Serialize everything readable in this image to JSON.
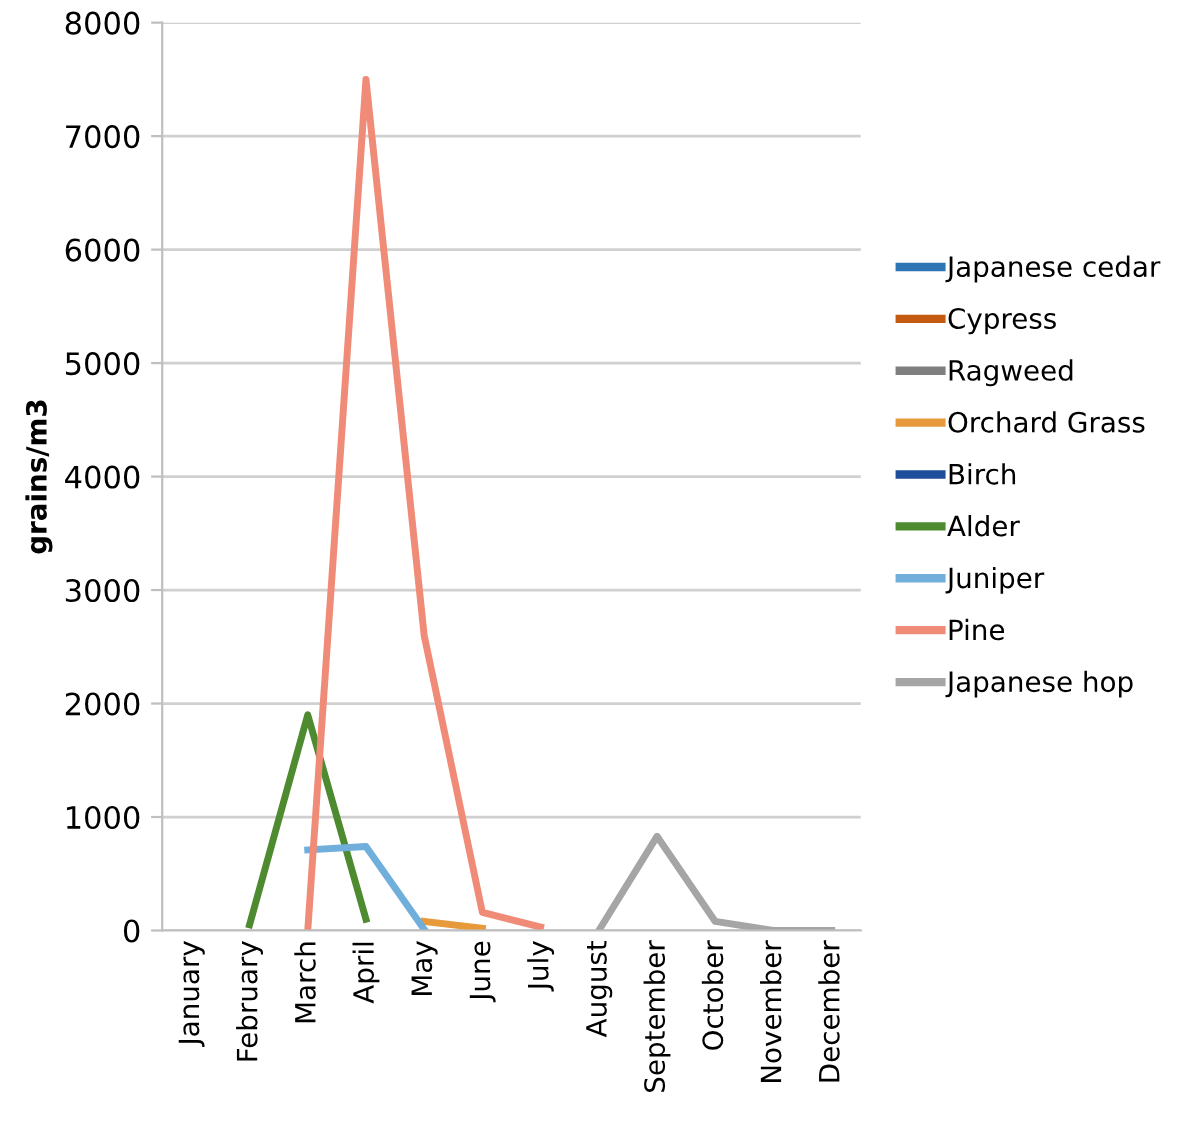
{
  "chart_data": {
    "type": "line",
    "ylabel": "grains/m3",
    "categories": [
      "January",
      "February",
      "March",
      "April",
      "May",
      "June",
      "July",
      "August",
      "September",
      "October",
      "November",
      "December"
    ],
    "series": [
      {
        "name": "Japanese cedar",
        "color": "#2e75b6",
        "values": [
          null,
          null,
          null,
          null,
          null,
          null,
          null,
          null,
          null,
          null,
          null,
          null
        ]
      },
      {
        "name": "Cypress",
        "color": "#c55a11",
        "values": [
          null,
          null,
          null,
          null,
          null,
          null,
          null,
          null,
          null,
          null,
          null,
          null
        ]
      },
      {
        "name": "Ragweed",
        "color": "#7f7f7f",
        "values": [
          null,
          null,
          null,
          null,
          null,
          null,
          null,
          null,
          null,
          null,
          null,
          null
        ]
      },
      {
        "name": "Orchard Grass",
        "color": "#e69a3c",
        "values": [
          null,
          null,
          null,
          null,
          80,
          20,
          null,
          null,
          null,
          null,
          null,
          null
        ]
      },
      {
        "name": "Birch",
        "color": "#1f4e9a",
        "values": [
          null,
          null,
          null,
          null,
          null,
          null,
          null,
          null,
          null,
          null,
          null,
          null
        ]
      },
      {
        "name": "Alder",
        "color": "#4e8b30",
        "values": [
          null,
          50,
          1900,
          100,
          null,
          null,
          null,
          null,
          null,
          null,
          null,
          null
        ]
      },
      {
        "name": "Juniper",
        "color": "#70aedc",
        "values": [
          null,
          null,
          710,
          740,
          10,
          null,
          null,
          null,
          null,
          null,
          null,
          null
        ]
      },
      {
        "name": "Pine",
        "color": "#f08b78",
        "values": [
          null,
          null,
          0,
          7500,
          2600,
          160,
          30,
          null,
          null,
          null,
          null,
          null
        ]
      },
      {
        "name": "Japanese hop",
        "color": "#a5a5a5",
        "values": [
          null,
          null,
          null,
          null,
          null,
          null,
          null,
          0,
          830,
          80,
          0,
          0
        ]
      }
    ],
    "ylim": [
      0,
      8000
    ],
    "yticks": [
      0,
      1000,
      2000,
      3000,
      4000,
      5000,
      6000,
      7000,
      8000
    ],
    "grid": "y",
    "legend": "right",
    "marker": "none",
    "line_style": "solid"
  }
}
